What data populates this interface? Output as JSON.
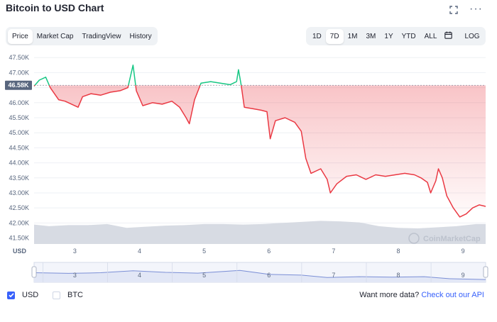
{
  "title": "Bitcoin to USD Chart",
  "header_icons": [
    "fullscreen-icon",
    "more-icon"
  ],
  "view_tabs": [
    {
      "label": "Price",
      "active": true
    },
    {
      "label": "Market Cap",
      "active": false
    },
    {
      "label": "TradingView",
      "active": false
    },
    {
      "label": "History",
      "active": false
    }
  ],
  "range_tabs": [
    {
      "label": "1D",
      "active": false
    },
    {
      "label": "7D",
      "active": true
    },
    {
      "label": "1M",
      "active": false
    },
    {
      "label": "3M",
      "active": false
    },
    {
      "label": "1Y",
      "active": false
    },
    {
      "label": "YTD",
      "active": false
    },
    {
      "label": "ALL",
      "active": false
    }
  ],
  "calendar_icon": "calendar-icon",
  "log_label": "LOG",
  "watermark": "CoinMarketCap",
  "footer": {
    "usd_label": "USD",
    "usd_checked": true,
    "btc_label": "BTC",
    "btc_checked": false,
    "more_text": "Want more data?",
    "api_link": "Check out our API"
  },
  "colors": {
    "up": "#16c784",
    "down": "#ea3943",
    "accent": "#3861fb",
    "volume": "#d7dbe3",
    "grid": "#eef0f4"
  },
  "chart_data": {
    "type": "line",
    "currency_label": "USD",
    "current_price_label": "46.58K",
    "reference_price": 46580,
    "ylim": [
      41300,
      47600
    ],
    "y_ticks": [
      {
        "value": 41500,
        "label": "41.50K"
      },
      {
        "value": 42000,
        "label": "42.00K"
      },
      {
        "value": 42500,
        "label": "42.50K"
      },
      {
        "value": 43000,
        "label": "43.00K"
      },
      {
        "value": 43500,
        "label": "43.50K"
      },
      {
        "value": 44000,
        "label": "44.00K"
      },
      {
        "value": 44500,
        "label": "44.50K"
      },
      {
        "value": 45000,
        "label": "45.00K"
      },
      {
        "value": 45500,
        "label": "45.50K"
      },
      {
        "value": 46000,
        "label": "46.00K"
      },
      {
        "value": 46500,
        "label": "46.50K"
      },
      {
        "value": 47000,
        "label": "47.00K"
      },
      {
        "value": 47500,
        "label": "47.50K"
      }
    ],
    "xlim": [
      2.37,
      9.35
    ],
    "x_ticks": [
      {
        "value": 3,
        "label": "3"
      },
      {
        "value": 4,
        "label": "4"
      },
      {
        "value": 5,
        "label": "5"
      },
      {
        "value": 6,
        "label": "6"
      },
      {
        "value": 7,
        "label": "7"
      },
      {
        "value": 8,
        "label": "8"
      },
      {
        "value": 9,
        "label": "9"
      }
    ],
    "grid": true,
    "series": [
      {
        "points": [
          [
            2.37,
            46550
          ],
          [
            2.45,
            46750
          ],
          [
            2.55,
            46850
          ],
          [
            2.62,
            46500
          ],
          [
            2.75,
            46100
          ],
          [
            2.85,
            46050
          ],
          [
            2.95,
            45950
          ],
          [
            3.05,
            45850
          ],
          [
            3.12,
            46200
          ],
          [
            3.25,
            46300
          ],
          [
            3.4,
            46250
          ],
          [
            3.55,
            46350
          ],
          [
            3.7,
            46400
          ],
          [
            3.82,
            46500
          ],
          [
            3.9,
            47250
          ],
          [
            3.95,
            46400
          ],
          [
            4.05,
            45900
          ],
          [
            4.2,
            46000
          ],
          [
            4.35,
            45950
          ],
          [
            4.5,
            46050
          ],
          [
            4.62,
            45850
          ],
          [
            4.72,
            45500
          ],
          [
            4.77,
            45300
          ],
          [
            4.85,
            46100
          ],
          [
            4.95,
            46650
          ],
          [
            5.1,
            46700
          ],
          [
            5.25,
            46650
          ],
          [
            5.4,
            46600
          ],
          [
            5.5,
            46700
          ],
          [
            5.53,
            47100
          ],
          [
            5.57,
            46600
          ],
          [
            5.62,
            45850
          ],
          [
            5.75,
            45800
          ],
          [
            5.88,
            45750
          ],
          [
            5.97,
            45700
          ],
          [
            6.02,
            44800
          ],
          [
            6.1,
            45400
          ],
          [
            6.25,
            45500
          ],
          [
            6.4,
            45350
          ],
          [
            6.5,
            45050
          ],
          [
            6.57,
            44150
          ],
          [
            6.65,
            43650
          ],
          [
            6.8,
            43800
          ],
          [
            6.9,
            43450
          ],
          [
            6.95,
            43000
          ],
          [
            7.05,
            43300
          ],
          [
            7.2,
            43550
          ],
          [
            7.35,
            43600
          ],
          [
            7.5,
            43450
          ],
          [
            7.65,
            43600
          ],
          [
            7.8,
            43550
          ],
          [
            7.95,
            43600
          ],
          [
            8.1,
            43650
          ],
          [
            8.25,
            43600
          ],
          [
            8.35,
            43500
          ],
          [
            8.45,
            43350
          ],
          [
            8.5,
            43000
          ],
          [
            8.58,
            43400
          ],
          [
            8.62,
            43800
          ],
          [
            8.68,
            43500
          ],
          [
            8.75,
            42900
          ],
          [
            8.85,
            42500
          ],
          [
            8.95,
            42200
          ],
          [
            9.05,
            42300
          ],
          [
            9.15,
            42500
          ],
          [
            9.25,
            42600
          ],
          [
            9.35,
            42550
          ]
        ]
      }
    ],
    "volume": [
      [
        2.37,
        0.72
      ],
      [
        2.6,
        0.66
      ],
      [
        2.9,
        0.7
      ],
      [
        3.2,
        0.7
      ],
      [
        3.5,
        0.74
      ],
      [
        3.8,
        0.6
      ],
      [
        4.1,
        0.64
      ],
      [
        4.4,
        0.68
      ],
      [
        4.7,
        0.7
      ],
      [
        5.0,
        0.74
      ],
      [
        5.3,
        0.74
      ],
      [
        5.6,
        0.72
      ],
      [
        5.9,
        0.74
      ],
      [
        6.2,
        0.78
      ],
      [
        6.5,
        0.82
      ],
      [
        6.8,
        0.86
      ],
      [
        7.1,
        0.84
      ],
      [
        7.4,
        0.8
      ],
      [
        7.7,
        0.66
      ],
      [
        8.0,
        0.6
      ],
      [
        8.3,
        0.58
      ],
      [
        8.6,
        0.62
      ],
      [
        8.9,
        0.66
      ],
      [
        9.2,
        0.74
      ],
      [
        9.35,
        0.74
      ]
    ],
    "navigator": [
      [
        2.37,
        0.52
      ],
      [
        2.9,
        0.55
      ],
      [
        3.4,
        0.52
      ],
      [
        3.9,
        0.42
      ],
      [
        4.4,
        0.5
      ],
      [
        4.9,
        0.54
      ],
      [
        5.55,
        0.4
      ],
      [
        6.0,
        0.6
      ],
      [
        6.5,
        0.64
      ],
      [
        6.9,
        0.76
      ],
      [
        7.4,
        0.72
      ],
      [
        7.9,
        0.74
      ],
      [
        8.4,
        0.72
      ],
      [
        8.8,
        0.82
      ],
      [
        9.35,
        0.86
      ]
    ]
  }
}
